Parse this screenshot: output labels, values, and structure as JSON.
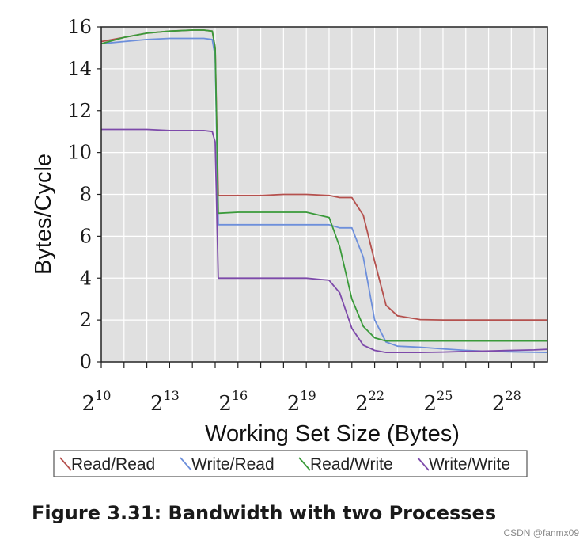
{
  "caption": "Figure 3.31: Bandwidth with two Processes",
  "watermark": "CSDN @fanmx09",
  "chart_data": {
    "type": "line",
    "title": "",
    "xlabel": "Working Set Size (Bytes)",
    "ylabel": "Bytes/Cycle",
    "x_scale": "log2",
    "x_tick_base": "2",
    "x_tick_exponents": [
      10,
      13,
      16,
      19,
      22,
      25,
      28
    ],
    "xlim": [
      1024,
      805306368
    ],
    "y_ticks": [
      0,
      2,
      4,
      6,
      8,
      10,
      12,
      14,
      16
    ],
    "ylim": [
      0,
      16
    ],
    "grid": true,
    "legend_position": "bottom",
    "colors": {
      "plot_background": "#e0e0e0",
      "grid": "#ffffff",
      "Read/Read": "#b5514e",
      "Write/Read": "#6d8fdb",
      "Read/Write": "#3a9a3a",
      "Write/Write": "#7d4aaa"
    },
    "x": [
      1024,
      2048,
      4096,
      8192,
      16384,
      23170,
      30000,
      32768,
      36000,
      65536,
      131072,
      262144,
      524288,
      1048576,
      1448155,
      2097152,
      2965820,
      4194304,
      5931642,
      8388608,
      16777216,
      33554432,
      67108864,
      134217728,
      268435456,
      536870912,
      805306368
    ],
    "series": [
      {
        "name": "Read/Read",
        "values": [
          15.3,
          15.5,
          15.7,
          15.8,
          15.85,
          15.85,
          15.8,
          15.0,
          7.95,
          7.95,
          7.95,
          8.0,
          8.0,
          7.95,
          7.85,
          7.85,
          7.0,
          4.8,
          2.7,
          2.2,
          2.02,
          2.0,
          2.0,
          2.0,
          2.0,
          2.0,
          2.0
        ]
      },
      {
        "name": "Write/Read",
        "values": [
          15.2,
          15.3,
          15.4,
          15.45,
          15.45,
          15.45,
          15.4,
          14.6,
          6.55,
          6.55,
          6.55,
          6.55,
          6.55,
          6.55,
          6.4,
          6.4,
          5.0,
          2.0,
          0.95,
          0.75,
          0.7,
          0.62,
          0.55,
          0.5,
          0.48,
          0.46,
          0.45
        ]
      },
      {
        "name": "Read/Write",
        "values": [
          15.2,
          15.5,
          15.7,
          15.8,
          15.85,
          15.85,
          15.8,
          15.0,
          7.1,
          7.15,
          7.15,
          7.15,
          7.15,
          6.9,
          5.5,
          3.0,
          1.7,
          1.15,
          1.0,
          1.0,
          1.0,
          1.0,
          1.0,
          1.0,
          1.0,
          1.0,
          1.0
        ]
      },
      {
        "name": "Write/Write",
        "values": [
          11.1,
          11.1,
          11.1,
          11.05,
          11.05,
          11.05,
          11.0,
          10.5,
          4.0,
          4.0,
          4.0,
          4.0,
          4.0,
          3.9,
          3.3,
          1.6,
          0.8,
          0.55,
          0.45,
          0.45,
          0.45,
          0.47,
          0.5,
          0.52,
          0.55,
          0.57,
          0.6
        ]
      }
    ]
  }
}
